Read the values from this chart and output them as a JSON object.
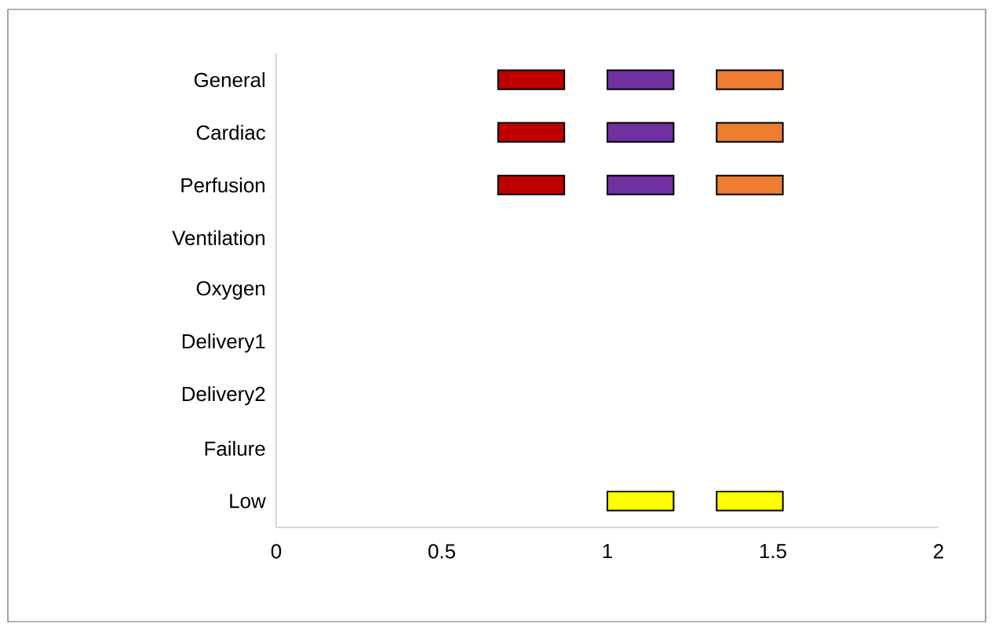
{
  "chart_data": {
    "type": "bar",
    "orientation": "horizontal",
    "categories": [
      "General",
      "Cardiac",
      "Perfusion",
      "Ventilation",
      "Oxygen",
      "Delivery1",
      "Delivery2",
      "Failure",
      "Low"
    ],
    "series": [
      {
        "base": [
          0.67,
          0.67,
          0.67,
          null,
          null,
          null,
          null,
          null,
          null
        ],
        "values": [
          0.2,
          0.2,
          0.2,
          null,
          null,
          null,
          null,
          null,
          null
        ],
        "color": "#c00000"
      },
      {
        "base": [
          1,
          1,
          1,
          null,
          null,
          null,
          null,
          null,
          1
        ],
        "values": [
          0.2,
          0.2,
          0.2,
          null,
          null,
          null,
          null,
          null,
          0.2
        ],
        "colors": [
          "#7030a0",
          "#7030a0",
          "#7030a0",
          null,
          null,
          null,
          null,
          null,
          "#ffff00"
        ]
      },
      {
        "base": [
          1.33,
          1.33,
          1.33,
          null,
          null,
          null,
          null,
          null,
          1.33
        ],
        "values": [
          0.2,
          0.2,
          0.2,
          null,
          null,
          null,
          null,
          null,
          0.2
        ],
        "colors": [
          "#ed7d31",
          "#ed7d31",
          "#ed7d31",
          null,
          null,
          null,
          null,
          null,
          "#ffff00"
        ]
      }
    ],
    "xlim": [
      0,
      2
    ],
    "xticks": [
      0,
      0.5,
      1,
      1.5,
      2
    ],
    "grid": false
  }
}
